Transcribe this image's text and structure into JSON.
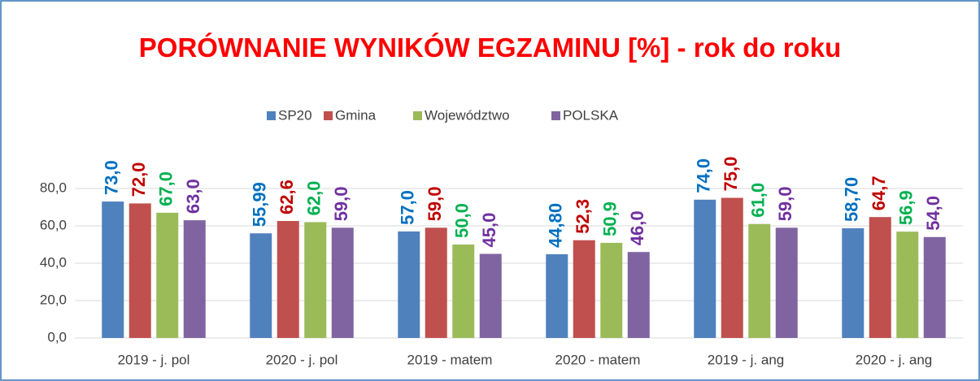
{
  "chart_data": {
    "type": "bar",
    "title": "PORÓWNANIE WYNIKÓW EGZAMINU [%] - rok do roku",
    "categories": [
      "2019 - j. pol",
      "2020 - j. pol",
      "2019 - matem",
      "2020 - matem",
      "2019 - j. ang",
      "2020 - j. ang"
    ],
    "series": [
      {
        "name": "SP20",
        "color": "#4f81bd",
        "label_color": "#0070c0",
        "values": [
          73.0,
          55.99,
          57.0,
          44.8,
          74.0,
          58.7
        ],
        "value_labels": [
          "73,0",
          "55,99",
          "57,0",
          "44,80",
          "74,0",
          "58,70"
        ]
      },
      {
        "name": "Gmina",
        "color": "#c0504d",
        "label_color": "#c00000",
        "values": [
          72.0,
          62.6,
          59.0,
          52.3,
          75.0,
          64.7
        ],
        "value_labels": [
          "72,0",
          "62,6",
          "59,0",
          "52,3",
          "75,0",
          "64,7"
        ]
      },
      {
        "name": "Województwo",
        "color": "#9bbb59",
        "label_color": "#00b050",
        "values": [
          67.0,
          62.0,
          50.0,
          50.9,
          61.0,
          56.9
        ],
        "value_labels": [
          "67,0",
          "62,0",
          "50,0",
          "50,9",
          "61,0",
          "56,9"
        ]
      },
      {
        "name": "POLSKA",
        "color": "#8064a2",
        "label_color": "#7030a0",
        "values": [
          63.0,
          59.0,
          45.0,
          46.0,
          59.0,
          54.0
        ],
        "value_labels": [
          "63,0",
          "59,0",
          "45,0",
          "46,0",
          "59,0",
          "54,0"
        ]
      }
    ],
    "ylim": [
      0,
      80
    ],
    "yticks": [
      {
        "value": 0,
        "label": "0,0"
      },
      {
        "value": 20,
        "label": "20,0"
      },
      {
        "value": 40,
        "label": "40,0"
      },
      {
        "value": 60,
        "label": "60,0"
      },
      {
        "value": 80,
        "label": "80,0"
      }
    ],
    "grid": true,
    "legend": "top"
  }
}
